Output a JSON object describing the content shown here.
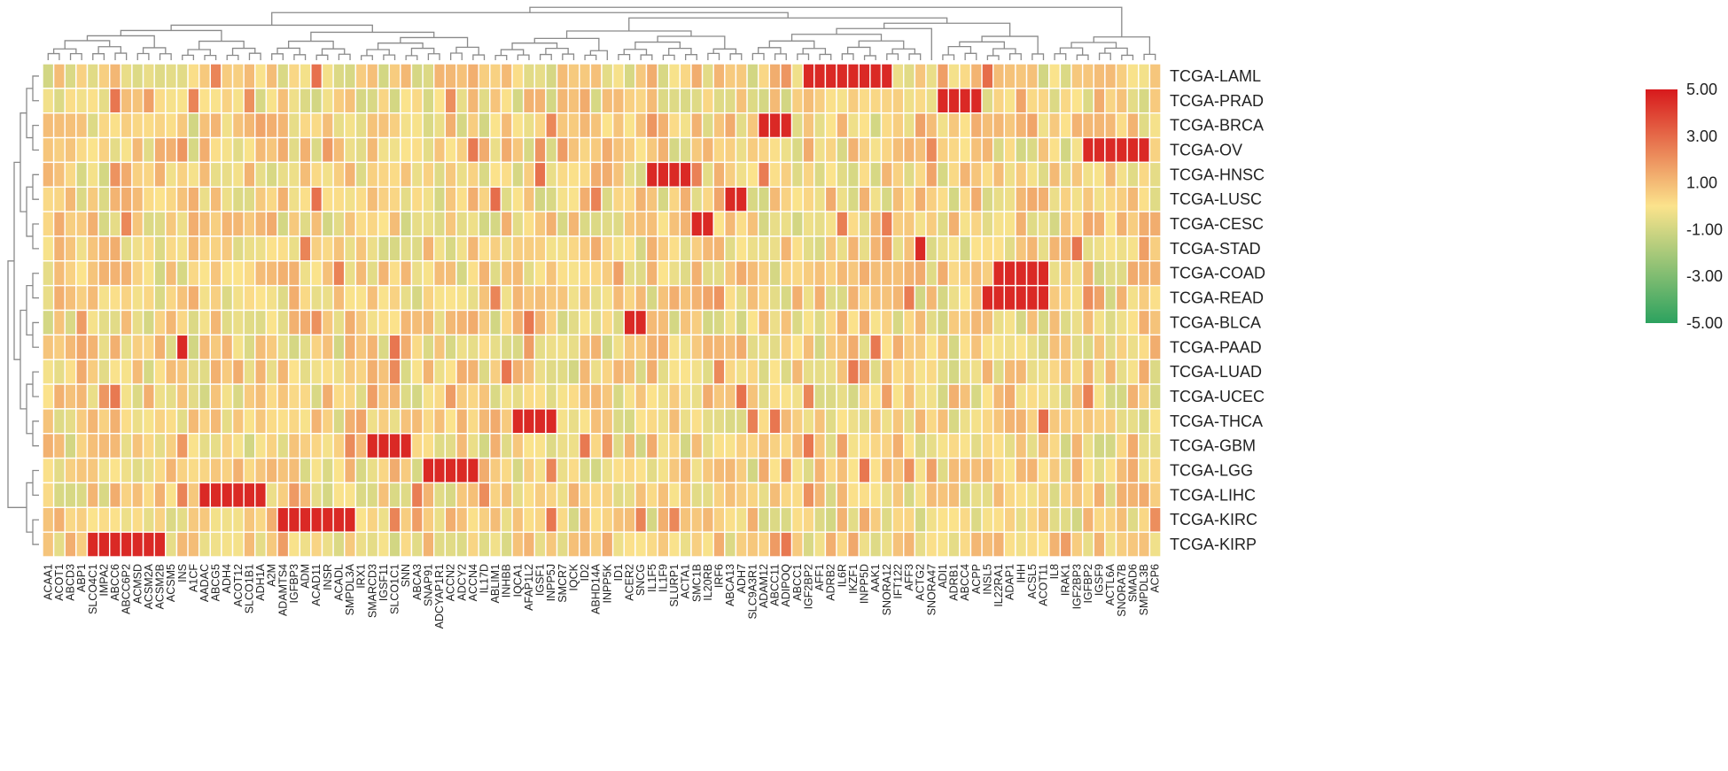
{
  "chart_data": {
    "type": "heatmap",
    "title": "",
    "rows": [
      "TCGA-LAML",
      "TCGA-PRAD",
      "TCGA-BRCA",
      "TCGA-OV",
      "TCGA-HNSC",
      "TCGA-LUSC",
      "TCGA-CESC",
      "TCGA-STAD",
      "TCGA-COAD",
      "TCGA-READ",
      "TCGA-BLCA",
      "TCGA-PAAD",
      "TCGA-LUAD",
      "TCGA-UCEC",
      "TCGA-THCA",
      "TCGA-GBM",
      "TCGA-LGG",
      "TCGA-LIHC",
      "TCGA-KIRC",
      "TCGA-KIRP"
    ],
    "columns": [
      "ACAA1",
      "ACOT1",
      "ABCD3",
      "ABP1",
      "SLCO4C1",
      "IMPA2",
      "ABCC6",
      "ABCC6P2",
      "ACMSD",
      "ACSM2A",
      "ACSM2B",
      "ACSM5",
      "INS",
      "A1CF",
      "AADAC",
      "ABCG5",
      "ADH4",
      "ACOT12",
      "SLCO1B1",
      "ADH1A",
      "A2M",
      "ADAMTS4",
      "IGFBP3",
      "ADM",
      "ACAD11",
      "INSR",
      "ACADL",
      "SMPDL3A",
      "IRX1",
      "SMARCD3",
      "IGSF11",
      "SLCO1C1",
      "SNN",
      "ABCA3",
      "SNAP91",
      "ADCYAP1R1",
      "ACCN2",
      "ADCY2",
      "ACCN4",
      "IL17D",
      "ABLIM1",
      "INHBB",
      "IQCA1",
      "AFAP1L2",
      "IGSF1",
      "INPP5J",
      "SMCR7",
      "IQCK",
      "ID2",
      "ABHD14A",
      "INPP5K",
      "ID1",
      "ACER2",
      "SNCG",
      "IL1F5",
      "IL1F9",
      "SLURP1",
      "ACTA1",
      "SMC1B",
      "IL20RB",
      "IRF6",
      "ABCA13",
      "ADH7",
      "SLC9A3R1",
      "ADAM12",
      "ABCC11",
      "ADIPOQ",
      "ABCC1",
      "IGF2BP2",
      "AFF1",
      "ADRB2",
      "IL6R",
      "IKZF1",
      "INPP5D",
      "AAK1",
      "SNORA12",
      "IFT122",
      "AFF3",
      "ACTG2",
      "SNORA47",
      "ADI1",
      "ADRB1",
      "ABCC4",
      "ACPP",
      "INSL5",
      "IL22RA1",
      "ADAP1",
      "IHH",
      "ACSL5",
      "ACOT11",
      "IL8",
      "IRAK1",
      "IGF2BP3",
      "IGFBP2",
      "IGSF9",
      "ACTL6A",
      "SNORA7B",
      "SMAD6",
      "SMPDL3B",
      "ACP6"
    ],
    "legend": {
      "ticks": [
        "5.00",
        "3.00",
        "1.00",
        "-1.00",
        "-3.00",
        "-5.00"
      ],
      "min": -5,
      "max": 5,
      "position": "right"
    },
    "high_clusters": [
      {
        "row": "TCGA-LAML",
        "columns": [
          "IGF2BP2",
          "AFF1",
          "ADRB2",
          "IL6R",
          "IKZF1",
          "INPP5D",
          "AAK1",
          "SNORA12"
        ]
      },
      {
        "row": "TCGA-PRAD",
        "columns": [
          "ADI1",
          "ADRB1",
          "ABCC4",
          "ACPP"
        ]
      },
      {
        "row": "TCGA-BRCA",
        "columns": [
          "ADAM12",
          "ABCC11",
          "ADIPOQ"
        ]
      },
      {
        "row": "TCGA-OV",
        "columns": [
          "IGFBP2",
          "IGSF9",
          "ACTL6A",
          "SNORA7B",
          "SMAD6",
          "SMPDL3B"
        ]
      },
      {
        "row": "TCGA-HNSC",
        "columns": [
          "IL1F5",
          "IL1F9",
          "SLURP1",
          "ACTA1"
        ]
      },
      {
        "row": "TCGA-LUSC",
        "columns": [
          "ABCA13",
          "ADH7"
        ]
      },
      {
        "row": "TCGA-CESC",
        "columns": [
          "SMC1B",
          "IL20RB"
        ]
      },
      {
        "row": "TCGA-STAD",
        "columns": [
          "ACTG2"
        ]
      },
      {
        "row": "TCGA-COAD",
        "columns": [
          "IL22RA1",
          "ADAP1",
          "IHH",
          "ACSL5",
          "ACOT11"
        ]
      },
      {
        "row": "TCGA-READ",
        "columns": [
          "INSL5",
          "IL22RA1",
          "ADAP1",
          "IHH",
          "ACSL5",
          "ACOT11"
        ]
      },
      {
        "row": "TCGA-BLCA",
        "columns": [
          "ACER2",
          "SNCG"
        ]
      },
      {
        "row": "TCGA-PAAD",
        "columns": [
          "INS"
        ]
      },
      {
        "row": "TCGA-THCA",
        "columns": [
          "IQCA1",
          "AFAP1L2",
          "IGSF1",
          "INPP5J"
        ]
      },
      {
        "row": "TCGA-GBM",
        "columns": [
          "SMARCD3",
          "IGSF11",
          "SLCO1C1",
          "SNN"
        ]
      },
      {
        "row": "TCGA-LGG",
        "columns": [
          "SNAP91",
          "ADCYAP1R1",
          "ACCN2",
          "ADCY2",
          "ACCN4"
        ]
      },
      {
        "row": "TCGA-LIHC",
        "columns": [
          "AADAC",
          "ABCG5",
          "ADH4",
          "ACOT12",
          "SLCO1B1",
          "ADH1A"
        ]
      },
      {
        "row": "TCGA-KIRC",
        "columns": [
          "ADAMTS4",
          "IGFBP3",
          "ADM",
          "ACAD11",
          "INSR",
          "ACADL",
          "SMPDL3A"
        ]
      },
      {
        "row": "TCGA-KIRP",
        "columns": [
          "SLCO4C1",
          "IMPA2",
          "ABCC6",
          "ABCC6P2",
          "ACMSD",
          "ACSM2A",
          "ACSM2B"
        ]
      }
    ],
    "baseline_value": 0.2,
    "high_value": 4.6
  },
  "colors": {
    "high": "#d7191c",
    "mid": "#fbe38c",
    "low": "#2ca25f",
    "grid": "#ffffff",
    "dendrogram": "#8a8a8a"
  }
}
